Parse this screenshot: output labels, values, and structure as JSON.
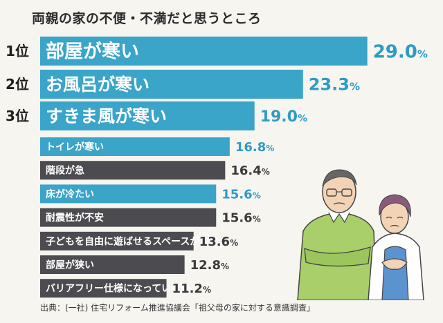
{
  "title": "両親の家の不便・不満だと思うところ",
  "source": "出典：(一社) 住宅リフォーム推進協議会「祖父母の家に対する意識調査」",
  "colors": {
    "blue": "#3aa4c9",
    "gray": "#4b4b50",
    "blue_text": "#2f9bc4",
    "gray_text": "#3a3a3a"
  },
  "chart_data": {
    "type": "bar",
    "orientation": "horizontal",
    "title": "両親の家の不便・不満だと思うところ",
    "unit": "%",
    "categories": [
      "部屋が寒い",
      "お風呂が寒い",
      "すきま風が寒い",
      "トイレが寒い",
      "階段が急",
      "床が冷たい",
      "耐震性が不安",
      "子どもを自由に遊ばせるスペースがない",
      "部屋が狭い",
      "バリアフリー仕様になっていない"
    ],
    "values": [
      29.0,
      23.3,
      19.0,
      16.8,
      16.4,
      15.6,
      15.6,
      13.6,
      12.8,
      11.2
    ],
    "value_labels": [
      "29.0",
      "23.3",
      "19.0",
      "16.8",
      "16.4",
      "15.6",
      "15.6",
      "13.6",
      "12.8",
      "11.2"
    ],
    "ranks": [
      "1位",
      "2位",
      "3位"
    ],
    "bar_colors": [
      "blue",
      "blue",
      "blue",
      "blue",
      "gray",
      "blue",
      "gray",
      "gray",
      "gray",
      "gray"
    ]
  }
}
